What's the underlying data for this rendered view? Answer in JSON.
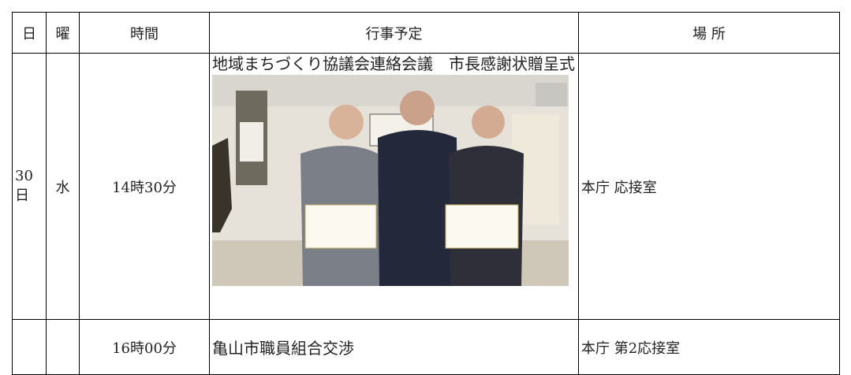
{
  "table": {
    "header": [
      "日",
      "曜",
      "時間",
      "行事予定",
      "場 所"
    ],
    "rows": [
      {
        "day": "30日",
        "weekday": "水",
        "time": "14時30分",
        "event": "地域まちづくり協議会連絡会議　市長感謝状贈呈式",
        "place": "本庁 応接室"
      },
      {
        "time": "16時00分",
        "event": "亀山市職員組合交渉",
        "place": "本庁 第2応接室"
      }
    ]
  }
}
